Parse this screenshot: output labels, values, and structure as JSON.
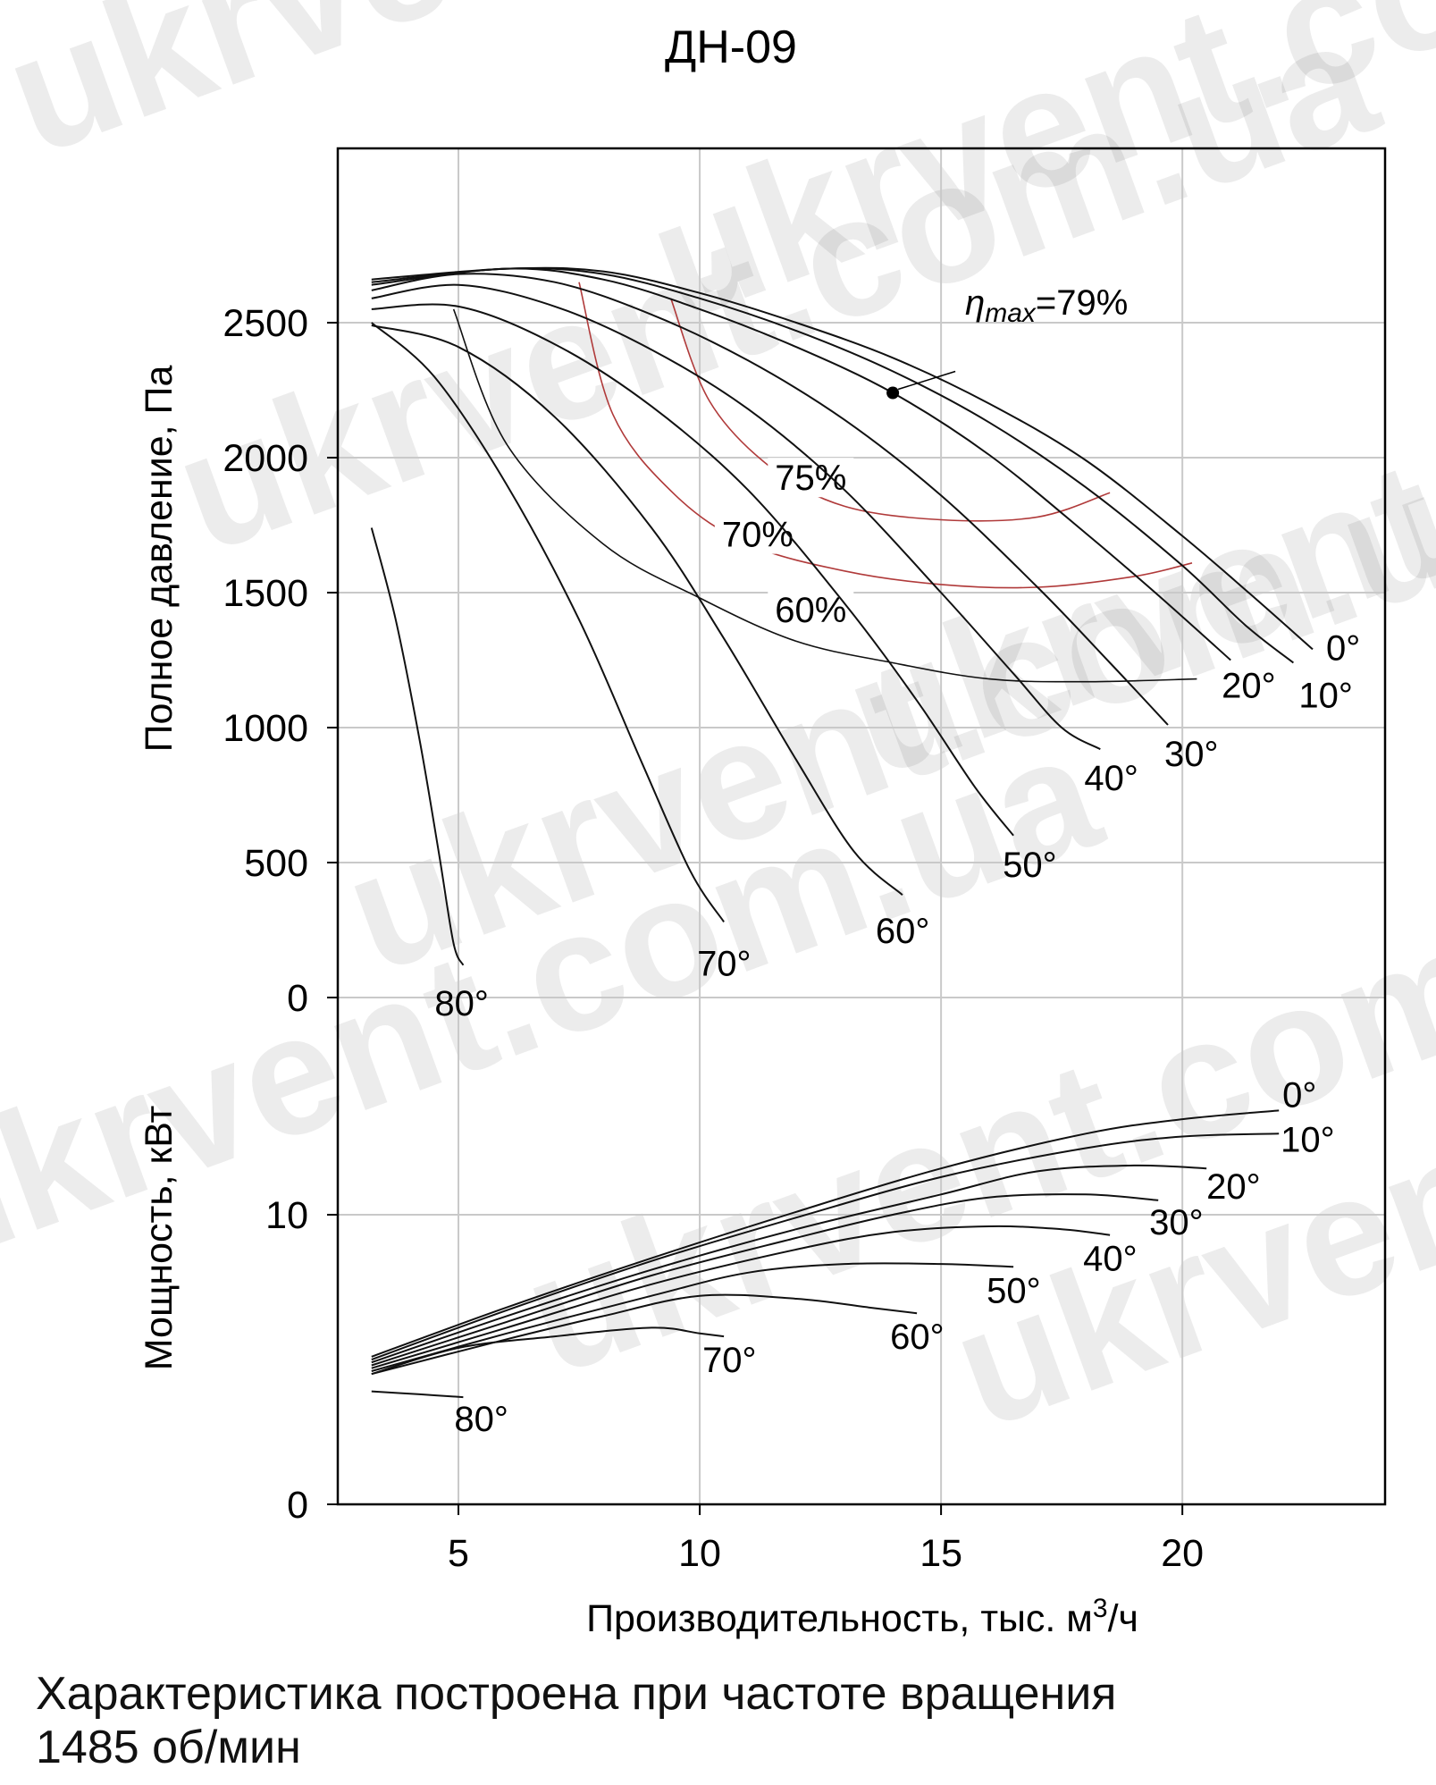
{
  "title": "ДН-09",
  "footnote": {
    "line1": "Характеристика построена при частоте вращения",
    "line2": "1485 об/мин"
  },
  "watermark": "ukrvent.com.ua",
  "colors": {
    "curve": "#111111",
    "efficiency": "#b03a3a",
    "grid": "#c9c9c9",
    "frame": "#000000"
  },
  "chart_data": [
    {
      "type": "line",
      "title": "ДН-09",
      "ylabel": "Полное давление, Па",
      "xlabel": "",
      "xlim": [
        2.5,
        24.2
      ],
      "ylim": [
        0,
        3000
      ],
      "xticks": [
        5,
        10,
        15,
        20
      ],
      "yticks": [
        0,
        500,
        1000,
        1500,
        2000,
        2500
      ],
      "grid": true,
      "series": [
        {
          "name": "0°",
          "x": [
            3.2,
            6,
            8,
            10,
            12,
            14,
            16,
            18,
            20,
            21.5,
            22.7
          ],
          "y": [
            2660,
            2700,
            2690,
            2610,
            2500,
            2370,
            2200,
            1990,
            1710,
            1480,
            1290
          ]
        },
        {
          "name": "10°",
          "x": [
            3.2,
            6,
            8,
            10,
            12,
            14,
            16,
            18,
            20,
            21.3,
            22.3
          ],
          "y": [
            2650,
            2700,
            2680,
            2590,
            2470,
            2320,
            2130,
            1890,
            1600,
            1380,
            1240
          ]
        },
        {
          "name": "20°",
          "x": [
            3.2,
            6,
            8,
            10,
            12,
            14,
            16,
            18,
            19.5,
            21
          ],
          "y": [
            2640,
            2700,
            2660,
            2550,
            2410,
            2240,
            2010,
            1720,
            1490,
            1250
          ]
        },
        {
          "name": "30°",
          "x": [
            3.2,
            5,
            7,
            9,
            11,
            13,
            15,
            17,
            18.5,
            19.7
          ],
          "y": [
            2620,
            2680,
            2650,
            2530,
            2360,
            2140,
            1860,
            1520,
            1240,
            1010
          ]
        },
        {
          "name": "40°",
          "x": [
            3.2,
            5,
            7,
            9,
            11,
            13,
            15,
            16.5,
            17.5,
            18.3
          ],
          "y": [
            2590,
            2640,
            2560,
            2400,
            2180,
            1880,
            1500,
            1200,
            1000,
            920
          ]
        },
        {
          "name": "50°",
          "x": [
            3.2,
            5,
            7,
            9,
            11,
            13,
            14.5,
            15.7,
            16.5
          ],
          "y": [
            2550,
            2560,
            2420,
            2190,
            1880,
            1460,
            1100,
            780,
            600
          ]
        },
        {
          "name": "60°",
          "x": [
            3.2,
            5,
            7,
            9,
            10.5,
            12,
            13.2,
            14.2
          ],
          "y": [
            2490,
            2410,
            2150,
            1740,
            1330,
            880,
            540,
            380
          ]
        },
        {
          "name": "70°",
          "x": [
            3.2,
            4.5,
            6,
            7.5,
            8.8,
            9.8,
            10.5
          ],
          "y": [
            2500,
            2300,
            1900,
            1400,
            870,
            470,
            280
          ]
        },
        {
          "name": "80°",
          "x": [
            3.2,
            3.7,
            4.2,
            4.6,
            4.9,
            5.1
          ],
          "y": [
            1740,
            1400,
            950,
            530,
            200,
            120
          ]
        }
      ],
      "efficiency_lines": [
        {
          "label": "60%",
          "x": [
            4.9,
            6,
            8,
            10,
            12,
            14,
            16,
            18,
            20.3
          ],
          "y": [
            2550,
            2050,
            1680,
            1480,
            1320,
            1240,
            1180,
            1170,
            1180
          ]
        },
        {
          "label": "70%",
          "x": [
            7.5,
            8.2,
            9.5,
            11,
            13,
            15,
            17,
            19,
            20.2
          ],
          "y": [
            2650,
            2160,
            1860,
            1680,
            1580,
            1530,
            1520,
            1560,
            1610
          ]
        },
        {
          "label": "75%",
          "x": [
            9.4,
            10.2,
            11.5,
            13,
            15,
            17,
            18.5
          ],
          "y": [
            2590,
            2210,
            1960,
            1820,
            1770,
            1780,
            1870
          ]
        }
      ],
      "annotations": [
        {
          "text": "ηmax=79%",
          "x": 14,
          "y": 2240
        }
      ]
    },
    {
      "type": "line",
      "title": "",
      "ylabel": "Мощность, кВт",
      "xlabel": "Производительность, тыс. м3/ч",
      "xlim": [
        2.5,
        24.2
      ],
      "ylim": [
        0,
        20
      ],
      "xticks": [
        5,
        10,
        15,
        20
      ],
      "yticks": [
        0,
        10
      ],
      "grid": true,
      "series": [
        {
          "name": "0°",
          "x": [
            3.2,
            6,
            9,
            12,
            15,
            18,
            20,
            22
          ],
          "y": [
            5.1,
            6.8,
            8.5,
            10.1,
            11.6,
            12.8,
            13.3,
            13.6
          ]
        },
        {
          "name": "10°",
          "x": [
            3.2,
            6,
            9,
            12,
            15,
            18,
            20,
            22
          ],
          "y": [
            5.0,
            6.7,
            8.4,
            9.9,
            11.3,
            12.3,
            12.7,
            12.8
          ]
        },
        {
          "name": "20°",
          "x": [
            3.2,
            6,
            9,
            12,
            15,
            17,
            19,
            20.5
          ],
          "y": [
            4.9,
            6.5,
            8.1,
            9.5,
            10.7,
            11.5,
            11.7,
            11.6
          ]
        },
        {
          "name": "30°",
          "x": [
            3.2,
            6,
            9,
            12,
            14,
            16,
            18,
            19.5
          ],
          "y": [
            4.8,
            6.3,
            7.9,
            9.2,
            10.0,
            10.6,
            10.7,
            10.5
          ]
        },
        {
          "name": "40°",
          "x": [
            3.2,
            6,
            9,
            12,
            14,
            16,
            17.5,
            18.5
          ],
          "y": [
            4.7,
            6.1,
            7.6,
            8.8,
            9.4,
            9.6,
            9.5,
            9.3
          ]
        },
        {
          "name": "50°",
          "x": [
            3.2,
            6,
            9,
            11,
            13,
            15,
            16.5
          ],
          "y": [
            4.6,
            5.9,
            7.2,
            8.0,
            8.3,
            8.3,
            8.2
          ]
        },
        {
          "name": "60°",
          "x": [
            3.2,
            6,
            8,
            10,
            12,
            13.5,
            14.5
          ],
          "y": [
            4.5,
            5.7,
            6.5,
            7.2,
            7.1,
            6.8,
            6.6
          ]
        },
        {
          "name": "70°",
          "x": [
            3.2,
            5,
            7,
            9,
            10,
            10.5
          ],
          "y": [
            4.5,
            5.4,
            5.8,
            6.1,
            5.9,
            5.8
          ]
        },
        {
          "name": "80°",
          "x": [
            3.2,
            4.2,
            5.1
          ],
          "y": [
            3.9,
            3.8,
            3.7
          ]
        }
      ]
    }
  ]
}
